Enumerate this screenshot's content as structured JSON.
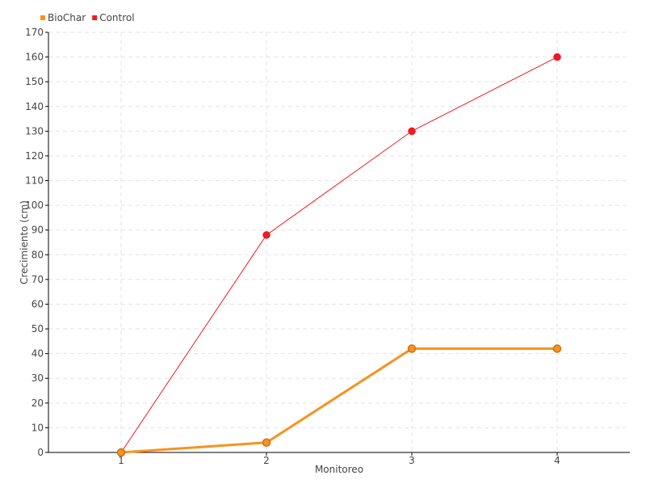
{
  "chart_data": {
    "type": "line",
    "categories": [
      "1",
      "2",
      "3",
      "4"
    ],
    "series": [
      {
        "name": "BioChar",
        "color": "#f7931e",
        "values": [
          0,
          4,
          42,
          42
        ]
      },
      {
        "name": "Control",
        "color": "#ed1c24",
        "values": [
          0,
          88,
          130,
          160
        ]
      }
    ],
    "xlabel": "Monitoreo",
    "ylabel": "Crecimiento (cm)",
    "ylim": [
      0,
      170
    ],
    "ytick_step": 10,
    "grid": true,
    "legend": "top-left"
  }
}
